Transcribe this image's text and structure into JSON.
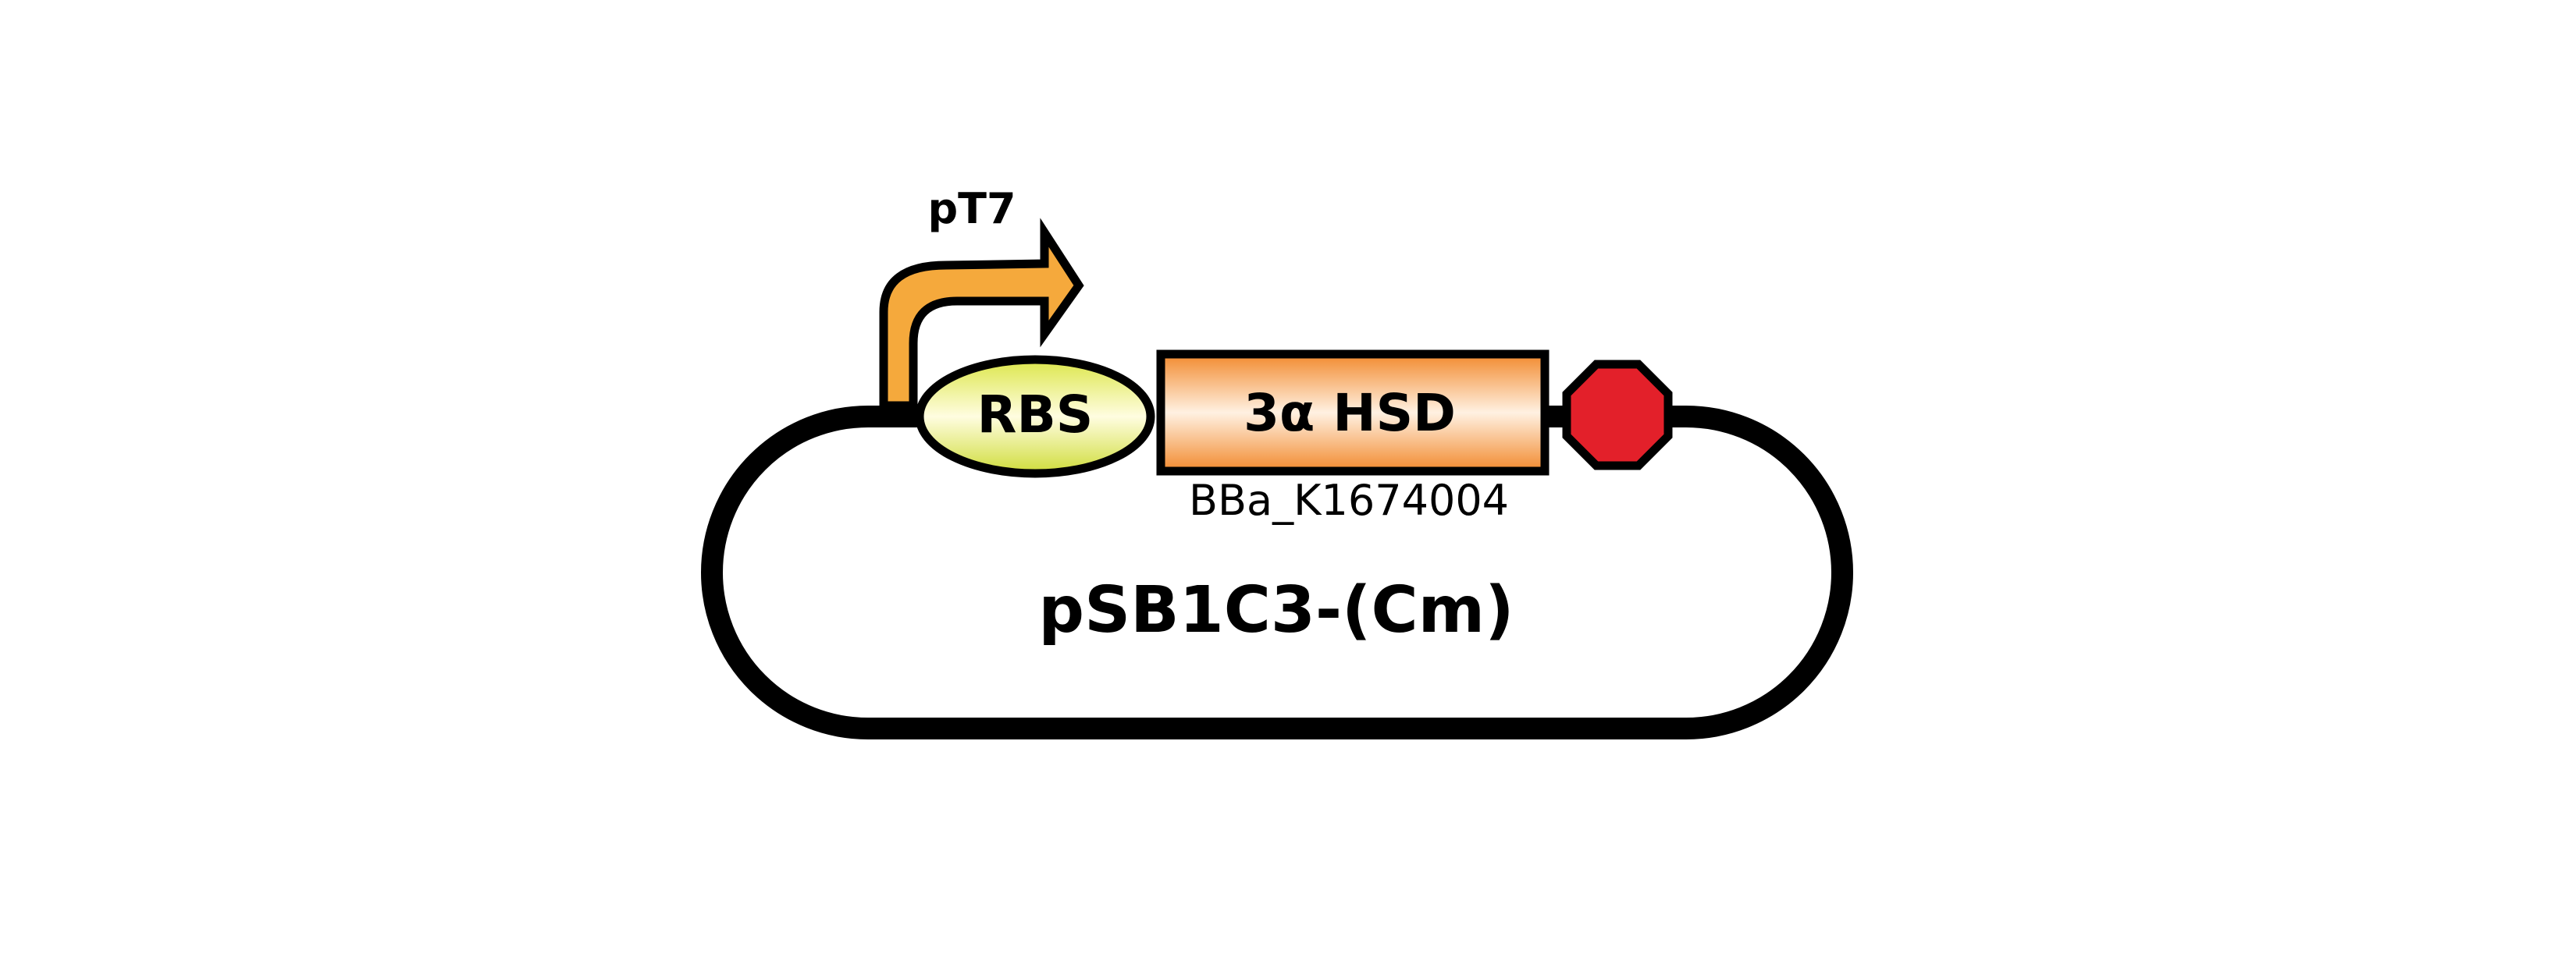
{
  "promoter": {
    "label": "pT7"
  },
  "rbs": {
    "label": "RBS"
  },
  "gene": {
    "label": "3α HSD",
    "part_id": "BBa_K1674004"
  },
  "terminator": {
    "icon": "stop-octagon-icon"
  },
  "plasmid": {
    "label": "pSB1C3-(Cm)"
  },
  "colors": {
    "outline": "#000000",
    "promoter_arrow": "#F5A93C",
    "rbs_center": "#FFFDE0",
    "rbs_edge": "#CFDC3A",
    "gene_center": "#FFF1E2",
    "gene_edge": "#F28A2E",
    "terminator": "#E3202A"
  }
}
